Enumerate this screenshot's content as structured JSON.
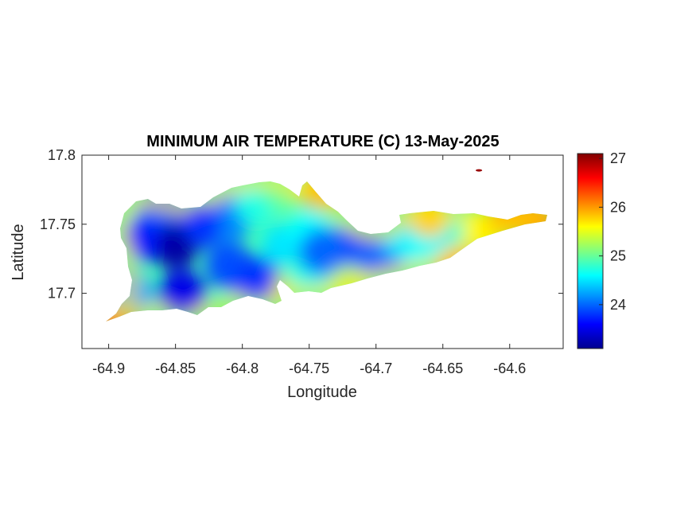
{
  "title": "MINIMUM AIR TEMPERATURE (C) 13-May-2025",
  "xlabel": "Longitude",
  "ylabel": "Latitude",
  "x_ticks": [
    "-64.9",
    "-64.85",
    "-64.8",
    "-64.75",
    "-64.7",
    "-64.65",
    "-64.6"
  ],
  "y_ticks": [
    "17.8",
    "17.75",
    "17.7"
  ],
  "colorbar_ticks": [
    "27",
    "26",
    "25",
    "24"
  ],
  "colormap": [
    "#00008f",
    "#0000ff",
    "#0080ff",
    "#00ffff",
    "#80ff80",
    "#ffff00",
    "#ff8000",
    "#ff0000",
    "#800000"
  ],
  "chart_data": {
    "type": "heatmap",
    "title": "MINIMUM AIR TEMPERATURE (C) 13-May-2025",
    "xlabel": "Longitude",
    "ylabel": "Latitude",
    "xlim": [
      -64.92,
      -64.56
    ],
    "ylim": [
      17.66,
      17.8
    ],
    "clim": [
      23.1,
      27.1
    ],
    "colorbar_ticks": [
      24,
      25,
      26,
      27
    ],
    "colormap": "jet",
    "grid": false,
    "points": [
      {
        "lon": -64.895,
        "lat": 17.683,
        "value": 26.5
      },
      {
        "lon": -64.885,
        "lat": 17.7,
        "value": 24.2
      },
      {
        "lon": -64.87,
        "lat": 17.74,
        "value": 23.7
      },
      {
        "lon": -64.86,
        "lat": 17.76,
        "value": 24.0
      },
      {
        "lon": -64.85,
        "lat": 17.735,
        "value": 23.2
      },
      {
        "lon": -64.845,
        "lat": 17.7,
        "value": 23.5
      },
      {
        "lon": -64.83,
        "lat": 17.75,
        "value": 23.8
      },
      {
        "lon": -64.81,
        "lat": 17.755,
        "value": 24.1
      },
      {
        "lon": -64.81,
        "lat": 17.72,
        "value": 23.9
      },
      {
        "lon": -64.79,
        "lat": 17.71,
        "value": 23.8
      },
      {
        "lon": -64.79,
        "lat": 17.765,
        "value": 24.7
      },
      {
        "lon": -64.77,
        "lat": 17.775,
        "value": 25.0
      },
      {
        "lon": -64.77,
        "lat": 17.735,
        "value": 24.5
      },
      {
        "lon": -64.75,
        "lat": 17.745,
        "value": 24.6
      },
      {
        "lon": -64.75,
        "lat": 17.71,
        "value": 24.7
      },
      {
        "lon": -64.74,
        "lat": 17.73,
        "value": 24.0
      },
      {
        "lon": -64.725,
        "lat": 17.73,
        "value": 24.0
      },
      {
        "lon": -64.71,
        "lat": 17.73,
        "value": 23.9
      },
      {
        "lon": -64.695,
        "lat": 17.73,
        "value": 24.0
      },
      {
        "lon": -64.72,
        "lat": 17.705,
        "value": 25.3
      },
      {
        "lon": -64.68,
        "lat": 17.74,
        "value": 24.5
      },
      {
        "lon": -64.665,
        "lat": 17.735,
        "value": 24.6
      },
      {
        "lon": -64.65,
        "lat": 17.745,
        "value": 24.6
      },
      {
        "lon": -64.63,
        "lat": 17.745,
        "value": 24.8
      },
      {
        "lon": -64.62,
        "lat": 17.745,
        "value": 25.6
      },
      {
        "lon": -64.6,
        "lat": 17.755,
        "value": 26.2
      },
      {
        "lon": -64.58,
        "lat": 17.753,
        "value": 26.4
      },
      {
        "lon": -64.66,
        "lat": 17.755,
        "value": 25.8
      },
      {
        "lon": -64.74,
        "lat": 17.775,
        "value": 26.0
      },
      {
        "lon": -64.64,
        "lat": 17.72,
        "value": 26.0
      },
      {
        "lon": -64.623,
        "lat": 17.789,
        "value": 27.0
      }
    ]
  }
}
